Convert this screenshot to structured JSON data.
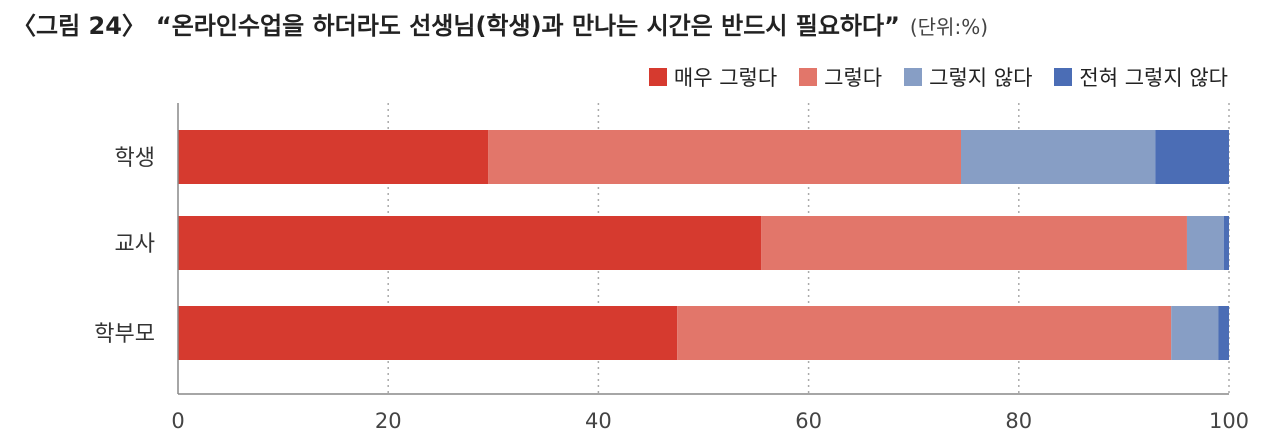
{
  "header": {
    "figure_label": "〈그림 24〉",
    "title": "“온라인수업을 하더라도 선생님(학생)과 만나는 시간은 반드시 필요하다”",
    "unit": "(단위:%)"
  },
  "chart_data": {
    "type": "bar",
    "orientation": "horizontal",
    "stacked": true,
    "categories": [
      "학생",
      "교사",
      "학부모"
    ],
    "series": [
      {
        "name": "매우 그렇다",
        "color": "#d63a2f",
        "values": [
          29.5,
          55.5,
          47.5
        ]
      },
      {
        "name": "그렇다",
        "color": "#e2766a",
        "values": [
          45.0,
          40.5,
          47.0
        ]
      },
      {
        "name": "그렇지 않다",
        "color": "#879ec5",
        "values": [
          18.5,
          3.5,
          4.5
        ]
      },
      {
        "name": "전혀 그렇지 않다",
        "color": "#4b6db5",
        "values": [
          7.0,
          0.5,
          1.0
        ]
      }
    ],
    "xlim": [
      0,
      100
    ],
    "xticks": [
      "0",
      "20",
      "40",
      "60",
      "80",
      "100"
    ],
    "grid": "vertical dotted",
    "legend_position": "top-right"
  }
}
